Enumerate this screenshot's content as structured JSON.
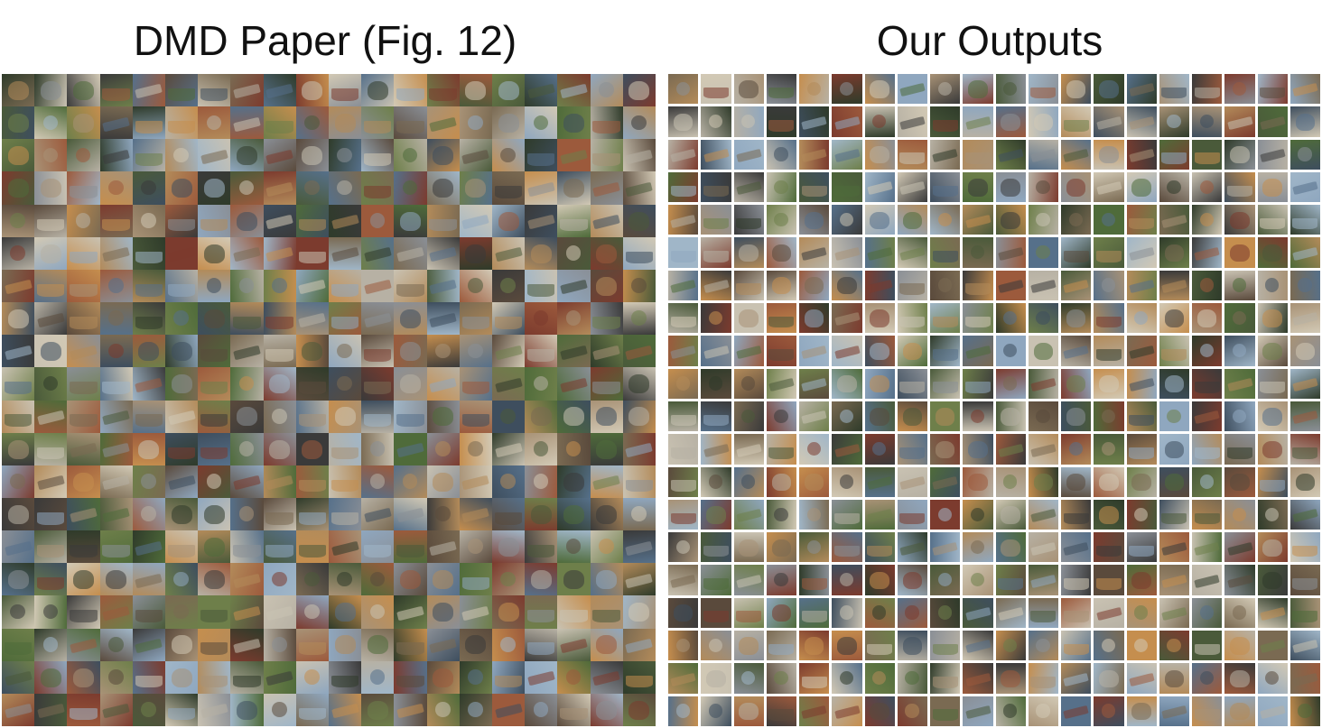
{
  "left_panel": {
    "title": "DMD Paper (Fig. 12)",
    "rows": 20,
    "cols": 20
  },
  "right_panel": {
    "title": "Our Outputs",
    "rows": 20,
    "cols": 20
  },
  "palette": [
    "#7a6a52",
    "#4f6b3a",
    "#8fa7bf",
    "#5a4a3c",
    "#a89276",
    "#3e4e5e",
    "#b7b1a4",
    "#6e7f4a",
    "#9c5a3c",
    "#c9c2b2",
    "#2f3b2a",
    "#8a8f96",
    "#b38b5a",
    "#56708a",
    "#d2c9b5",
    "#7c3b2e",
    "#a0b6c8",
    "#4a5a3a",
    "#c58e4e",
    "#3a3a3a"
  ]
}
